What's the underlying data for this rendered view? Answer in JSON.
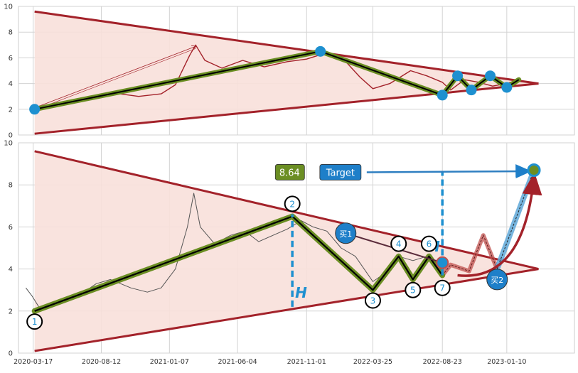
{
  "chart_data": [
    {
      "type": "line",
      "panel": "top",
      "ylim": [
        0,
        10
      ],
      "yticks": [
        0,
        2,
        4,
        6,
        8,
        10
      ],
      "xlim": [
        "2020-02-14",
        "2023-06-06"
      ],
      "grid": true,
      "series": [
        {
          "kind": "price",
          "color": "#a3222a",
          "points": [
            [
              "2020-03-20",
              1.9
            ],
            [
              "2020-05-01",
              2.4
            ],
            [
              "2020-07-01",
              2.8
            ],
            [
              "2020-09-01",
              3.3
            ],
            [
              "2020-11-01",
              3.0
            ],
            [
              "2020-12-20",
              3.2
            ],
            [
              "2021-01-20",
              3.9
            ],
            [
              "2021-02-20",
              6.2
            ],
            [
              "2021-03-05",
              7.0
            ],
            [
              "2021-03-25",
              5.8
            ],
            [
              "2021-05-01",
              5.2
            ],
            [
              "2021-06-15",
              5.8
            ],
            [
              "2021-08-01",
              5.3
            ],
            [
              "2021-09-20",
              5.7
            ],
            [
              "2021-11-01",
              5.9
            ],
            [
              "2021-12-15",
              6.4
            ],
            [
              "2022-01-20",
              5.9
            ],
            [
              "2022-02-25",
              4.5
            ],
            [
              "2022-03-25",
              3.6
            ],
            [
              "2022-05-01",
              4.0
            ],
            [
              "2022-06-15",
              5.0
            ],
            [
              "2022-07-20",
              4.6
            ],
            [
              "2022-08-23",
              4.1
            ],
            [
              "2022-09-10",
              3.5
            ],
            [
              "2022-10-10",
              4.3
            ],
            [
              "2022-11-10",
              4.1
            ],
            [
              "2022-12-10",
              3.8
            ],
            [
              "2023-01-10",
              4.0
            ],
            [
              "2023-02-05",
              4.3
            ]
          ]
        }
      ],
      "triangle": {
        "upper": [
          [
            "2020-03-20",
            9.6
          ],
          [
            "2023-03-20",
            4.0
          ]
        ],
        "lower": [
          [
            "2020-03-20",
            0.1
          ],
          [
            "2023-03-20",
            4.0
          ]
        ],
        "fill": "#f8e0da",
        "edge_color": "#a3222a"
      },
      "pattern_points": [
        [
          "2020-03-20",
          2.0
        ],
        [
          "2021-12-01",
          6.5
        ],
        [
          "2022-08-23",
          3.1
        ],
        [
          "2022-09-25",
          4.6
        ],
        [
          "2022-10-25",
          3.5
        ],
        [
          "2022-12-05",
          4.6
        ],
        [
          "2023-01-10",
          3.7
        ]
      ],
      "pattern_tail": [
        "2023-02-05",
        4.3
      ],
      "breakout_arrow": [
        [
          "2020-03-20",
          2.0
        ],
        [
          "2021-03-05",
          7.0
        ]
      ],
      "colors": {
        "zigzag_outer": "#6b8e23",
        "zigzag_inner": "#000000",
        "marker": "#1e90d0",
        "grid": "#cccccc"
      }
    },
    {
      "type": "line",
      "panel": "bottom",
      "ylim": [
        0,
        10
      ],
      "yticks": [
        0,
        2,
        4,
        6,
        8,
        10
      ],
      "xlim": [
        "2020-02-14",
        "2023-06-06"
      ],
      "xtick_labels": [
        "2020-03-17",
        "2020-08-12",
        "2021-01-07",
        "2021-06-04",
        "2021-11-01",
        "2022-03-25",
        "2022-08-23",
        "2023-01-10"
      ],
      "grid": true,
      "series": [
        {
          "kind": "price",
          "color": "#555555",
          "points": [
            [
              "2020-03-01",
              3.1
            ],
            [
              "2020-03-15",
              2.7
            ],
            [
              "2020-04-01",
              2.1
            ],
            [
              "2020-05-01",
              2.3
            ],
            [
              "2020-06-15",
              2.6
            ],
            [
              "2020-08-01",
              3.3
            ],
            [
              "2020-09-01",
              3.5
            ],
            [
              "2020-10-15",
              3.1
            ],
            [
              "2020-11-20",
              2.9
            ],
            [
              "2020-12-20",
              3.1
            ],
            [
              "2021-01-20",
              4.0
            ],
            [
              "2021-02-15",
              6.0
            ],
            [
              "2021-03-01",
              7.6
            ],
            [
              "2021-03-15",
              6.0
            ],
            [
              "2021-04-15",
              5.2
            ],
            [
              "2021-05-20",
              5.6
            ],
            [
              "2021-06-20",
              5.8
            ],
            [
              "2021-07-20",
              5.3
            ],
            [
              "2021-08-20",
              5.6
            ],
            [
              "2021-09-20",
              5.9
            ],
            [
              "2021-10-20",
              6.3
            ],
            [
              "2021-11-15",
              6.0
            ],
            [
              "2021-12-15",
              5.8
            ],
            [
              "2022-01-15",
              5.0
            ],
            [
              "2022-02-15",
              4.6
            ],
            [
              "2022-03-25",
              3.4
            ],
            [
              "2022-04-20",
              3.8
            ],
            [
              "2022-05-20",
              4.6
            ],
            [
              "2022-06-20",
              4.4
            ],
            [
              "2022-07-20",
              4.6
            ],
            [
              "2022-08-23",
              3.9
            ],
            [
              "2022-09-05",
              4.3
            ]
          ]
        }
      ],
      "triangle": {
        "upper": [
          [
            "2020-03-20",
            9.6
          ],
          [
            "2023-03-20",
            4.0
          ]
        ],
        "lower": [
          [
            "2020-03-20",
            0.1
          ],
          [
            "2023-03-20",
            4.0
          ]
        ],
        "fill": "#f8e0da",
        "edge_color": "#a3222a"
      },
      "pattern_points": [
        {
          "label": "1",
          "date": "2020-03-20",
          "value": 2.0
        },
        {
          "label": "2",
          "date": "2021-10-01",
          "value": 6.5
        },
        {
          "label": "3",
          "date": "2022-03-25",
          "value": 3.0
        },
        {
          "label": "4",
          "date": "2022-05-20",
          "value": 4.6
        },
        {
          "label": "5",
          "date": "2022-06-20",
          "value": 3.5
        },
        {
          "label": "6",
          "date": "2022-07-25",
          "value": 4.6
        },
        {
          "label": "7",
          "date": "2022-08-23",
          "value": 3.7
        }
      ],
      "label_positions": {
        "1": [
          "2020-03-20",
          1.5
        ],
        "2": [
          "2021-10-01",
          7.1
        ],
        "3": [
          "2022-03-25",
          2.5
        ],
        "4": [
          "2022-05-20",
          5.2
        ],
        "5": [
          "2022-06-20",
          3.0
        ],
        "6": [
          "2022-07-25",
          5.2
        ],
        "7": [
          "2022-08-23",
          3.1
        ]
      },
      "forecast_path": [
        [
          "2022-08-23",
          3.7
        ],
        [
          "2022-09-10",
          4.2
        ],
        [
          "2022-10-20",
          3.9
        ],
        [
          "2022-11-20",
          5.6
        ],
        [
          "2022-12-20",
          4.0
        ],
        [
          "2023-03-10",
          8.7
        ]
      ],
      "height_marker": {
        "label": "H",
        "date": "2021-10-01",
        "from": 2.2,
        "to": 6.6,
        "text_pos": [
          "2021-10-20",
          2.9
        ]
      },
      "height_marker_2": {
        "label": "H",
        "date": "2022-08-23",
        "from": 3.7,
        "to": 8.6,
        "text_pos": [
          "2022-08-05",
          5.1
        ]
      },
      "buy_signals": [
        {
          "label": "买1",
          "date": "2022-01-25",
          "value": 5.7
        },
        {
          "label": "买2",
          "date": "2022-12-20",
          "value": 3.5
        }
      ],
      "breakout_marker": [
        "2022-08-23",
        4.3
      ],
      "target_marker": [
        "2023-03-10",
        8.7
      ],
      "price_box": {
        "text": "8.64",
        "color": "#6b8e23",
        "pos": [
          "2021-09-25",
          8.6
        ]
      },
      "target_box": {
        "text": "Target",
        "color": "#1e7fc9",
        "pos": [
          "2022-01-12",
          8.6
        ],
        "arrow_to": [
          "2023-03-01",
          8.65
        ]
      },
      "colors": {
        "zigzag_outer": "#6b8e23",
        "zigzag_inner": "#000000",
        "marker": "#1e90d0",
        "dash": "#1e90d0",
        "forecast": "#c0504d",
        "grid": "#cccccc"
      }
    }
  ],
  "axes": {
    "top": {
      "ytick_labels": [
        "0",
        "2",
        "4",
        "6",
        "8",
        "10"
      ]
    },
    "bottom": {
      "ytick_labels": [
        "0",
        "2",
        "4",
        "6",
        "8",
        "10"
      ]
    }
  }
}
